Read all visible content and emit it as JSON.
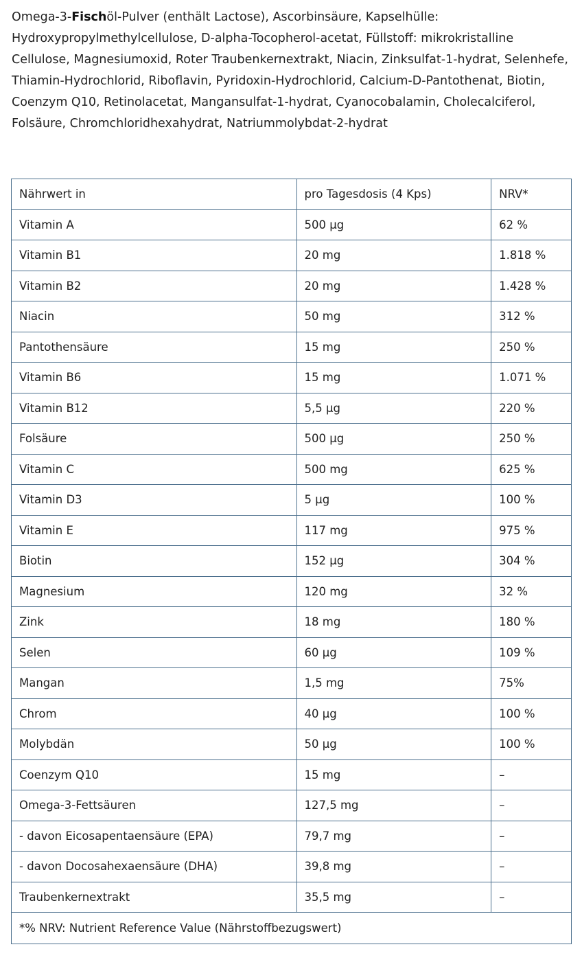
{
  "ingredients": {
    "prefix": "Omega-3-",
    "bold": "Fisch",
    "suffix": "öl-Pulver (enthält Lactose), Ascorbinsäure, Kapselhülle: Hydroxypropylmethylcellulose, D-alpha-Tocopherol-acetat, Füllstoff: mikrokristalline Cellulose, Magnesiumoxid, Roter Traubenkernextrakt, Niacin, Zinksulfat-1-hydrat, Selenhefe, Thiamin-Hydrochlorid, Riboflavin, Pyridoxin-Hydrochlorid, Calcium-D-Pantothenat, Biotin, Coenzym Q10, Retinolacetat, Mangansulfat-1-hydrat, Cyanocobalamin, Cholecalciferol, Folsäure, Chromchloridhexahydrat, Natriummolybdat-2-hydrat"
  },
  "table": {
    "header": [
      "Nährwert in",
      "pro Tagesdosis (4 Kps)",
      "NRV*"
    ],
    "rows": [
      [
        "Vitamin A",
        "500 µg",
        "62 %"
      ],
      [
        "Vitamin B1",
        "20 mg",
        "1.818 %"
      ],
      [
        "Vitamin B2",
        "20 mg",
        "1.428 %"
      ],
      [
        "Niacin",
        "50 mg",
        "312 %"
      ],
      [
        "Pantothensäure",
        "15 mg",
        "250 %"
      ],
      [
        "Vitamin B6",
        "15 mg",
        "1.071 %"
      ],
      [
        "Vitamin B12",
        "5,5 µg",
        "220 %"
      ],
      [
        "Folsäure",
        "500 µg",
        "250 %"
      ],
      [
        "Vitamin C",
        "500 mg",
        "625 %"
      ],
      [
        "Vitamin D3",
        "5 µg",
        "100 %"
      ],
      [
        "Vitamin E",
        "117 mg",
        "975 %"
      ],
      [
        "Biotin",
        "152 µg",
        "304 %"
      ],
      [
        "Magnesium",
        "120 mg",
        "32 %"
      ],
      [
        "Zink",
        "18 mg",
        "180 %"
      ],
      [
        "Selen",
        "60 µg",
        "109 %"
      ],
      [
        "Mangan",
        "1,5 mg",
        "75%"
      ],
      [
        "Chrom",
        "40 µg",
        "100 %"
      ],
      [
        "Molybdän",
        "50 µg",
        "100 %"
      ],
      [
        "Coenzym Q10",
        "15 mg",
        "–"
      ],
      [
        "Omega-3-Fettsäuren",
        "127,5 mg",
        "–"
      ],
      [
        "- davon Eicosapentaensäure (EPA)",
        "79,7 mg",
        "–"
      ],
      [
        "- davon Docosahexaensäure (DHA)",
        "39,8 mg",
        "–"
      ],
      [
        "Traubenkernextrakt",
        "35,5 mg",
        "–"
      ]
    ],
    "footnote": "*% NRV: Nutrient Reference Value (Nährstoffbezugswert)"
  },
  "colors": {
    "border": "#4a6e8c",
    "text": "#222222"
  }
}
